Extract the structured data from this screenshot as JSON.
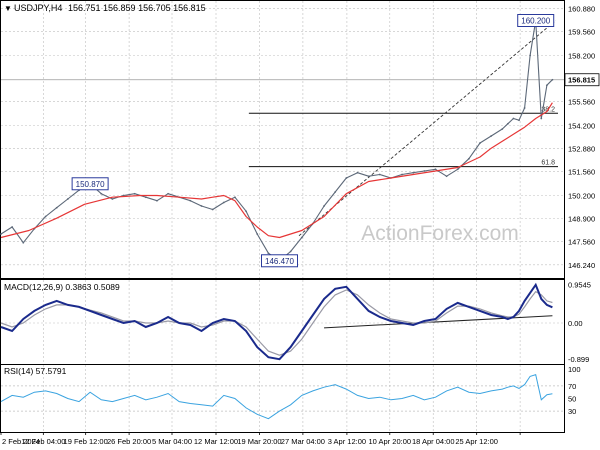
{
  "header": {
    "symbol": "USDJPY,H4",
    "ohlc": "156.751 156.859 156.705 156.815"
  },
  "watermark": "ActionForex.com",
  "colors": {
    "price": "#5c6878",
    "ma": "#e63636",
    "macd_main": "#1a2a8c",
    "macd_signal": "#9a9aa6",
    "rsi": "#3aa3e0",
    "callout_border": "#2a3a9c",
    "fib_line": "#111111",
    "trend_dashed": "#333333",
    "grid": "#bfbfbf"
  },
  "chart_data": [
    {
      "id": "price",
      "type": "line",
      "title": "USDJPY,H4",
      "ylim": [
        145.6,
        161.2
      ],
      "yticks": [
        146.24,
        147.56,
        148.9,
        150.2,
        151.56,
        152.88,
        154.2,
        155.56,
        156.815,
        158.2,
        159.56,
        160.88
      ],
      "ytick_labels": [
        "146.240",
        "147.560",
        "148.900",
        "150.200",
        "151.560",
        "152.880",
        "154.200",
        "155.560",
        "156.815",
        "158.200",
        "159.560",
        "160.880"
      ],
      "last_price": 156.815,
      "last_price_label": "156.815",
      "x_domain": [
        0,
        100
      ],
      "xticks": [
        0,
        7.6,
        15.2,
        23,
        30.7,
        38.6,
        46.4,
        54.2,
        62.1,
        69.8,
        77.6,
        85.4,
        93.2
      ],
      "xtick_labels": [
        "2 Feb 2024",
        "12 Feb 04:00",
        "19 Feb 12:00",
        "26 Feb 20:00",
        "5 Mar 04:00",
        "12 Mar 12:00",
        "19 Mar 20:00",
        "27 Mar 04:00",
        "3 Apr 12:00",
        "10 Apr 20:00",
        "18 Apr 04:00",
        "25 Apr 12:00",
        ""
      ],
      "series": [
        {
          "kind": "price",
          "x": [
            0,
            2,
            4,
            6,
            8,
            10,
            12,
            14,
            16,
            18,
            20,
            22,
            24,
            26,
            28,
            30,
            32,
            34,
            36,
            38,
            40,
            42,
            44,
            46,
            48,
            50,
            52,
            54,
            56,
            58,
            60,
            62,
            64,
            66,
            68,
            70,
            72,
            74,
            76,
            78,
            80,
            82,
            84,
            86,
            88,
            90,
            91,
            92,
            93,
            94,
            95,
            96,
            97,
            98,
            99
          ],
          "values": [
            148.0,
            148.4,
            147.5,
            148.3,
            149.0,
            149.5,
            150.0,
            150.5,
            150.87,
            150.3,
            150.0,
            150.2,
            150.3,
            150.1,
            149.9,
            150.3,
            150.1,
            149.9,
            149.6,
            149.4,
            149.8,
            150.1,
            149.3,
            148.0,
            146.9,
            146.47,
            147.0,
            147.8,
            148.6,
            149.6,
            150.4,
            151.2,
            151.5,
            151.3,
            151.4,
            151.2,
            151.4,
            151.5,
            151.6,
            151.7,
            151.3,
            151.7,
            152.3,
            153.2,
            153.6,
            154.0,
            154.3,
            154.6,
            154.5,
            155.2,
            158.2,
            160.2,
            154.6,
            156.5,
            156.815
          ]
        },
        {
          "kind": "ma",
          "x": [
            0,
            5,
            10,
            15,
            20,
            25,
            28,
            32,
            36,
            38,
            40,
            42,
            44,
            46,
            48,
            50,
            54,
            58,
            62,
            66,
            70,
            74,
            78,
            82,
            86,
            88,
            90,
            92,
            94,
            96,
            98,
            99
          ],
          "values": [
            147.8,
            148.2,
            148.9,
            149.7,
            150.1,
            150.2,
            150.2,
            150.1,
            150.0,
            150.1,
            150.2,
            149.9,
            149.0,
            148.4,
            147.9,
            147.8,
            148.2,
            149.0,
            150.3,
            151.0,
            151.2,
            151.4,
            151.6,
            151.8,
            152.4,
            152.9,
            153.3,
            153.7,
            154.1,
            154.6,
            155.0,
            155.5
          ]
        }
      ],
      "levels": [
        {
          "value": 154.9,
          "x_start": 44.5,
          "x_end": 100,
          "label": "38.2"
        },
        {
          "value": 151.85,
          "x_start": 44.5,
          "x_end": 100,
          "label": "61.8"
        }
      ],
      "trendline": {
        "x": [
          53.5,
          99.6
        ],
        "y": [
          147.9,
          160.2
        ]
      },
      "annotations": [
        {
          "label": "160.200",
          "x": 96,
          "y": 160.2
        },
        {
          "label": "150.870",
          "x": 16,
          "y": 150.87
        },
        {
          "label": "146.470",
          "x": 50,
          "y": 146.47
        }
      ]
    },
    {
      "id": "macd",
      "type": "line",
      "title": "MACD(12,26,9) 0.3863 0.5089",
      "ylim": [
        -0.97,
        1.02
      ],
      "yticks": [
        0.9545,
        0.0,
        -0.899
      ],
      "ytick_labels": [
        "0.9545",
        "0.00",
        "-0.899"
      ],
      "series": [
        {
          "name": "MACD",
          "x": [
            0,
            2,
            4,
            6,
            8,
            10,
            12,
            14,
            16,
            18,
            20,
            22,
            24,
            26,
            28,
            30,
            32,
            34,
            36,
            38,
            40,
            42,
            44,
            46,
            48,
            50,
            52,
            54,
            56,
            58,
            60,
            62,
            64,
            66,
            68,
            70,
            72,
            74,
            76,
            78,
            80,
            82,
            84,
            86,
            88,
            90,
            91,
            92,
            93,
            94,
            95,
            96,
            97,
            98,
            99
          ],
          "values": [
            -0.1,
            -0.2,
            0.1,
            0.3,
            0.45,
            0.55,
            0.45,
            0.4,
            0.3,
            0.2,
            0.1,
            0.0,
            0.05,
            -0.1,
            0.0,
            0.15,
            0.0,
            -0.05,
            -0.2,
            0.0,
            0.1,
            0.05,
            -0.2,
            -0.6,
            -0.85,
            -0.9,
            -0.6,
            -0.2,
            0.2,
            0.6,
            0.85,
            0.9,
            0.6,
            0.3,
            0.15,
            0.05,
            0.0,
            -0.05,
            0.05,
            0.1,
            0.35,
            0.5,
            0.4,
            0.3,
            0.2,
            0.15,
            0.1,
            0.15,
            0.3,
            0.55,
            0.75,
            0.95,
            0.6,
            0.45,
            0.39
          ]
        },
        {
          "name": "Signal",
          "x": [
            0,
            2,
            4,
            6,
            8,
            10,
            12,
            14,
            16,
            18,
            20,
            22,
            24,
            26,
            28,
            30,
            32,
            34,
            36,
            38,
            40,
            42,
            44,
            46,
            48,
            50,
            52,
            54,
            56,
            58,
            60,
            62,
            64,
            66,
            68,
            70,
            72,
            74,
            76,
            78,
            80,
            82,
            84,
            86,
            88,
            90,
            91,
            92,
            93,
            94,
            95,
            96,
            97,
            98,
            99
          ],
          "values": [
            0.0,
            -0.1,
            0.0,
            0.2,
            0.35,
            0.45,
            0.45,
            0.4,
            0.32,
            0.25,
            0.15,
            0.05,
            0.05,
            0.0,
            0.0,
            0.05,
            0.0,
            0.0,
            -0.1,
            -0.05,
            0.05,
            0.05,
            -0.1,
            -0.4,
            -0.7,
            -0.8,
            -0.7,
            -0.4,
            0.0,
            0.4,
            0.7,
            0.82,
            0.7,
            0.45,
            0.25,
            0.1,
            0.05,
            0.0,
            0.0,
            0.05,
            0.25,
            0.42,
            0.42,
            0.35,
            0.25,
            0.18,
            0.15,
            0.15,
            0.22,
            0.4,
            0.6,
            0.78,
            0.7,
            0.55,
            0.51
          ]
        }
      ],
      "trendline": {
        "x": [
          58,
          99
        ],
        "y": [
          -0.12,
          0.18
        ]
      }
    },
    {
      "id": "rsi",
      "type": "line",
      "title": "RSI(14) 57.5791",
      "ylim": [
        0,
        100
      ],
      "yticks": [
        100,
        70,
        50,
        30
      ],
      "ytick_labels": [
        "100",
        "70",
        "50",
        "30"
      ],
      "levels": [
        70,
        30
      ],
      "series": [
        {
          "name": "RSI",
          "x": [
            0,
            2,
            4,
            6,
            8,
            10,
            12,
            14,
            16,
            18,
            20,
            22,
            24,
            26,
            28,
            30,
            32,
            34,
            36,
            38,
            40,
            42,
            44,
            46,
            48,
            50,
            52,
            54,
            56,
            58,
            60,
            62,
            64,
            66,
            68,
            70,
            72,
            74,
            76,
            78,
            80,
            82,
            84,
            86,
            88,
            90,
            91,
            92,
            93,
            94,
            95,
            96,
            97,
            98,
            99
          ],
          "values": [
            45,
            55,
            52,
            60,
            62,
            58,
            50,
            45,
            60,
            48,
            45,
            50,
            55,
            48,
            52,
            58,
            45,
            42,
            40,
            38,
            55,
            50,
            35,
            25,
            18,
            30,
            40,
            55,
            62,
            68,
            72,
            65,
            55,
            50,
            52,
            48,
            50,
            55,
            48,
            52,
            62,
            68,
            60,
            58,
            62,
            65,
            68,
            70,
            66,
            72,
            85,
            88,
            48,
            56,
            57.58
          ]
        }
      ]
    }
  ]
}
